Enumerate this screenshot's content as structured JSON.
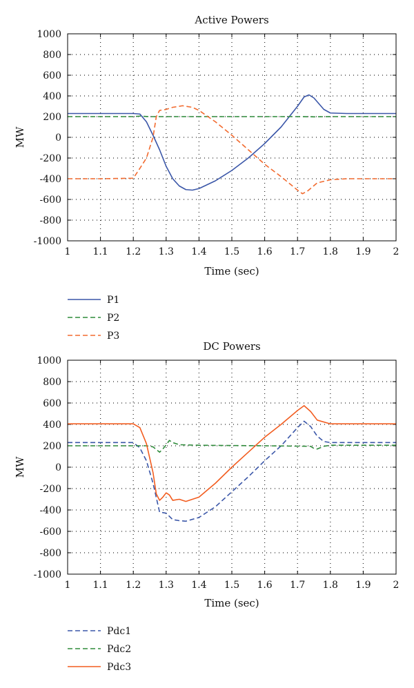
{
  "chart_data": [
    {
      "type": "line",
      "title": "Active Powers",
      "xlabel": "Time (sec)",
      "ylabel": "MW",
      "xlim": [
        1,
        2
      ],
      "ylim": [
        -1000,
        1000
      ],
      "xticks": [
        "1",
        "1.1",
        "1.2",
        "1.3",
        "1.4",
        "1.5",
        "1.6",
        "1.7",
        "1.8",
        "1.9",
        "2"
      ],
      "yticks": [
        "1000",
        "800",
        "600",
        "400",
        "200",
        "0",
        "-200",
        "-400",
        "-600",
        "-800",
        "-1000"
      ],
      "grid": true,
      "legend_position": "below",
      "series": [
        {
          "name": "P1",
          "color": "#3a56a8",
          "style": "solid",
          "points": [
            [
              1.0,
              230
            ],
            [
              1.1,
              230
            ],
            [
              1.2,
              230
            ],
            [
              1.22,
              225
            ],
            [
              1.24,
              150
            ],
            [
              1.26,
              20
            ],
            [
              1.28,
              -120
            ],
            [
              1.3,
              -280
            ],
            [
              1.32,
              -400
            ],
            [
              1.34,
              -470
            ],
            [
              1.36,
              -505
            ],
            [
              1.38,
              -510
            ],
            [
              1.4,
              -495
            ],
            [
              1.45,
              -420
            ],
            [
              1.5,
              -320
            ],
            [
              1.55,
              -200
            ],
            [
              1.6,
              -60
            ],
            [
              1.65,
              100
            ],
            [
              1.7,
              300
            ],
            [
              1.72,
              390
            ],
            [
              1.735,
              410
            ],
            [
              1.75,
              380
            ],
            [
              1.78,
              270
            ],
            [
              1.8,
              235
            ],
            [
              1.85,
              230
            ],
            [
              2.0,
              230
            ]
          ]
        },
        {
          "name": "P2",
          "color": "#2e8b3a",
          "style": "dashed",
          "points": [
            [
              1.0,
              200
            ],
            [
              1.2,
              200
            ],
            [
              1.22,
              205
            ],
            [
              1.25,
              200
            ],
            [
              1.5,
              200
            ],
            [
              1.7,
              200
            ],
            [
              1.75,
              198
            ],
            [
              1.8,
              200
            ],
            [
              2.0,
              200
            ]
          ]
        },
        {
          "name": "P3",
          "color": "#f26a2e",
          "style": "dashed",
          "points": [
            [
              1.0,
              -400
            ],
            [
              1.1,
              -400
            ],
            [
              1.2,
              -395
            ],
            [
              1.22,
              -300
            ],
            [
              1.24,
              -200
            ],
            [
              1.26,
              0
            ],
            [
              1.27,
              200
            ],
            [
              1.28,
              260
            ],
            [
              1.3,
              270
            ],
            [
              1.32,
              290
            ],
            [
              1.35,
              305
            ],
            [
              1.38,
              290
            ],
            [
              1.4,
              260
            ],
            [
              1.45,
              150
            ],
            [
              1.5,
              20
            ],
            [
              1.55,
              -120
            ],
            [
              1.6,
              -260
            ],
            [
              1.65,
              -380
            ],
            [
              1.7,
              -510
            ],
            [
              1.715,
              -545
            ],
            [
              1.73,
              -520
            ],
            [
              1.76,
              -440
            ],
            [
              1.8,
              -410
            ],
            [
              1.85,
              -400
            ],
            [
              2.0,
              -400
            ]
          ]
        }
      ]
    },
    {
      "type": "line",
      "title": "DC Powers",
      "xlabel": "Time (sec)",
      "ylabel": "MW",
      "xlim": [
        1,
        2
      ],
      "ylim": [
        -1000,
        1000
      ],
      "xticks": [
        "1",
        "1.1",
        "1.2",
        "1.3",
        "1.4",
        "1.5",
        "1.6",
        "1.7",
        "1.8",
        "1.9",
        "2"
      ],
      "yticks": [
        "1000",
        "800",
        "600",
        "400",
        "200",
        "0",
        "-200",
        "-400",
        "-600",
        "-800",
        "-1000"
      ],
      "grid": true,
      "legend_position": "below",
      "series": [
        {
          "name": "Pdc1",
          "color": "#3a56a8",
          "style": "dashed",
          "points": [
            [
              1.0,
              230
            ],
            [
              1.2,
              230
            ],
            [
              1.22,
              180
            ],
            [
              1.24,
              60
            ],
            [
              1.26,
              -150
            ],
            [
              1.28,
              -420
            ],
            [
              1.3,
              -430
            ],
            [
              1.32,
              -490
            ],
            [
              1.34,
              -500
            ],
            [
              1.36,
              -505
            ],
            [
              1.4,
              -470
            ],
            [
              1.45,
              -370
            ],
            [
              1.5,
              -230
            ],
            [
              1.55,
              -90
            ],
            [
              1.6,
              60
            ],
            [
              1.65,
              200
            ],
            [
              1.7,
              370
            ],
            [
              1.72,
              430
            ],
            [
              1.74,
              380
            ],
            [
              1.76,
              290
            ],
            [
              1.78,
              240
            ],
            [
              1.8,
              230
            ],
            [
              2.0,
              230
            ]
          ]
        },
        {
          "name": "Pdc2",
          "color": "#2e8b3a",
          "style": "dashed",
          "points": [
            [
              1.0,
              200
            ],
            [
              1.2,
              200
            ],
            [
              1.24,
              200
            ],
            [
              1.26,
              190
            ],
            [
              1.28,
              140
            ],
            [
              1.29,
              170
            ],
            [
              1.3,
              210
            ],
            [
              1.31,
              250
            ],
            [
              1.32,
              230
            ],
            [
              1.34,
              210
            ],
            [
              1.4,
              205
            ],
            [
              1.6,
              200
            ],
            [
              1.74,
              195
            ],
            [
              1.75,
              175
            ],
            [
              1.76,
              170
            ],
            [
              1.78,
              195
            ],
            [
              1.8,
              205
            ],
            [
              2.0,
              205
            ]
          ]
        },
        {
          "name": "Pdc3",
          "color": "#f25c1f",
          "style": "solid",
          "points": [
            [
              1.0,
              405
            ],
            [
              1.1,
              405
            ],
            [
              1.2,
              405
            ],
            [
              1.22,
              370
            ],
            [
              1.24,
              220
            ],
            [
              1.26,
              -50
            ],
            [
              1.27,
              -250
            ],
            [
              1.28,
              -310
            ],
            [
              1.29,
              -280
            ],
            [
              1.3,
              -240
            ],
            [
              1.31,
              -260
            ],
            [
              1.32,
              -310
            ],
            [
              1.34,
              -300
            ],
            [
              1.36,
              -320
            ],
            [
              1.4,
              -280
            ],
            [
              1.45,
              -150
            ],
            [
              1.5,
              0
            ],
            [
              1.55,
              140
            ],
            [
              1.6,
              280
            ],
            [
              1.65,
              400
            ],
            [
              1.7,
              530
            ],
            [
              1.72,
              575
            ],
            [
              1.74,
              520
            ],
            [
              1.76,
              440
            ],
            [
              1.8,
              405
            ],
            [
              2.0,
              405
            ]
          ]
        }
      ]
    }
  ]
}
